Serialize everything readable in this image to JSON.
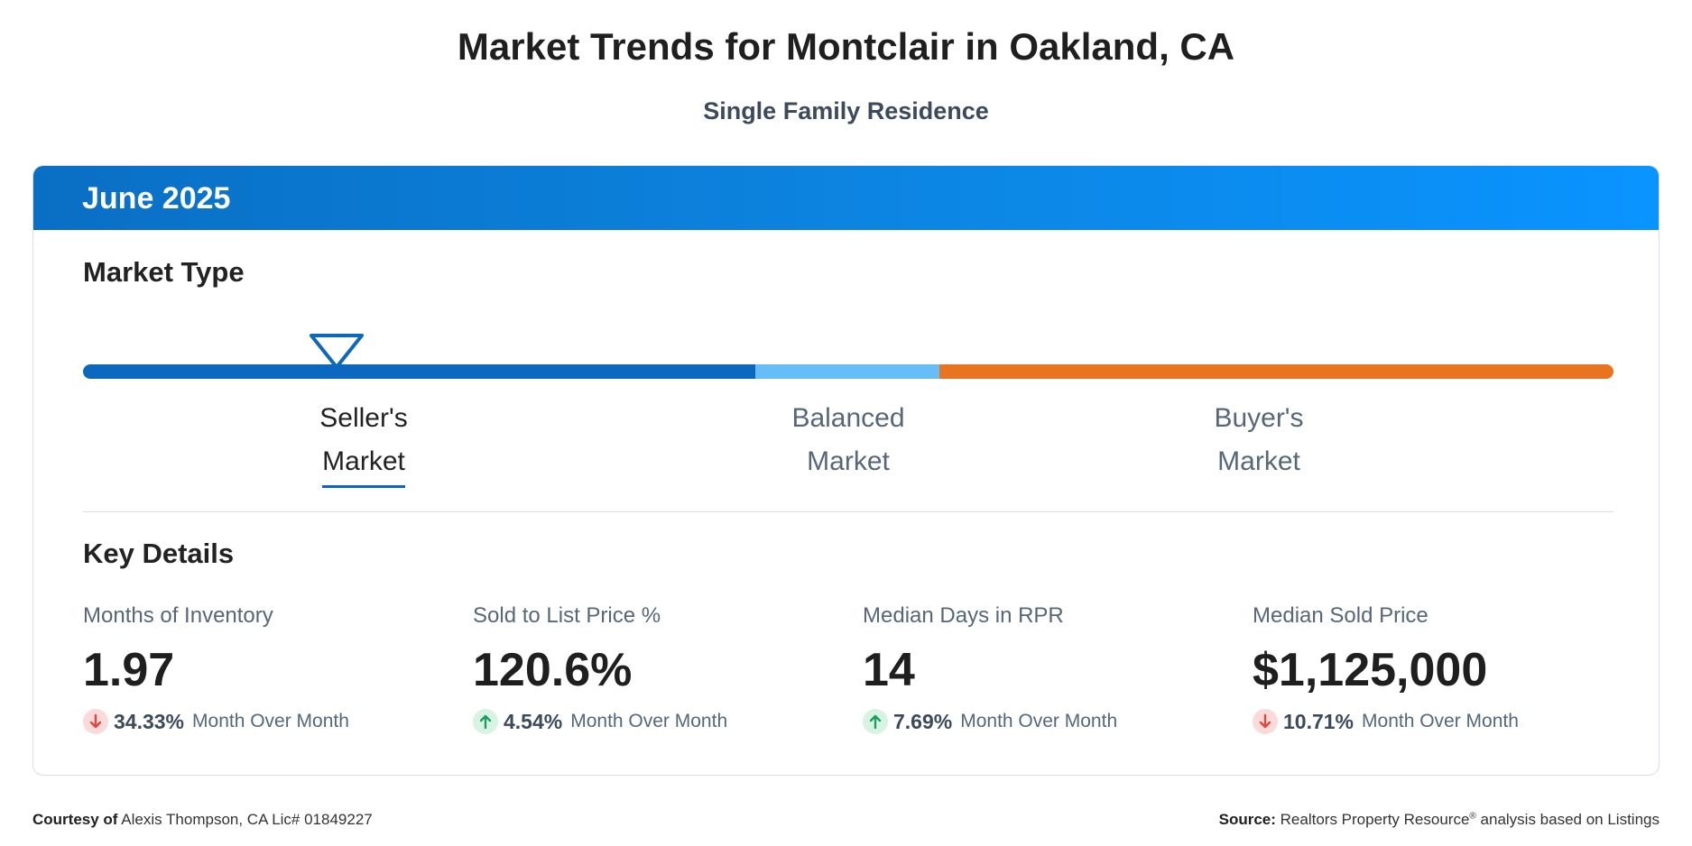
{
  "page": {
    "title": "Market Trends for Montclair in Oakland, CA",
    "subtitle": "Single Family Residence"
  },
  "card": {
    "period": "June 2025",
    "market_type_heading": "Market Type",
    "market_segments": [
      {
        "line1": "Seller's",
        "line2": "Market",
        "active": true,
        "color": "#0b68be"
      },
      {
        "line1": "Balanced",
        "line2": "Market",
        "active": false,
        "color": "#66bdf8"
      },
      {
        "line1": "Buyer's",
        "line2": "Market",
        "active": false,
        "color": "#e8741f"
      }
    ],
    "key_details_heading": "Key Details",
    "metrics": [
      {
        "name": "Months of Inventory",
        "value": "1.97",
        "direction": "down",
        "change": "34.33%",
        "period_label": "Month Over Month",
        "icon": "arrow-down-icon"
      },
      {
        "name": "Sold to List Price %",
        "value": "120.6%",
        "direction": "up",
        "change": "4.54%",
        "period_label": "Month Over Month",
        "icon": "arrow-up-icon"
      },
      {
        "name": "Median Days in RPR",
        "value": "14",
        "direction": "up",
        "change": "7.69%",
        "period_label": "Month Over Month",
        "icon": "arrow-up-icon"
      },
      {
        "name": "Median Sold Price",
        "value": "$1,125,000",
        "direction": "down",
        "change": "10.71%",
        "period_label": "Month Over Month",
        "icon": "arrow-down-icon"
      }
    ]
  },
  "footer": {
    "courtesy_label": "Courtesy of",
    "courtesy_text": "Alexis Thompson, CA Lic# 01849227",
    "source_label": "Source:",
    "source_name": "Realtors Property Resource",
    "source_mark": "®",
    "source_rest": "analysis based on Listings"
  },
  "colors": {
    "header_blue": "#0c86e3",
    "seller_blue": "#0b68be",
    "balanced_blue": "#66bdf8",
    "buyer_orange": "#e8741f",
    "down_red": "#e0483e",
    "up_green": "#1e9e5c"
  }
}
